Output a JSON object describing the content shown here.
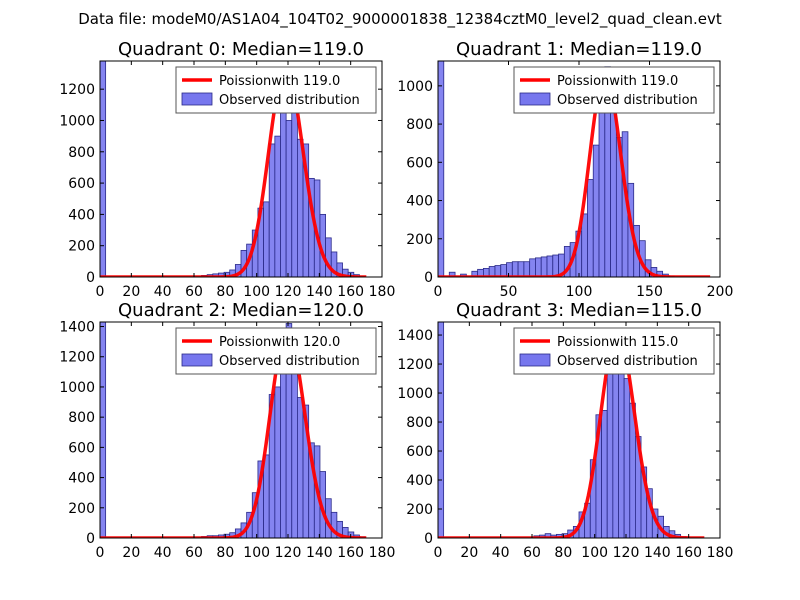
{
  "suptitle": "Data file: modeM0/AS1A04_104T02_9000001838_12384cztM0_level2_quad_clean.evt",
  "colors": {
    "poisson": "#ff0000",
    "hist_fill": "#7777ee",
    "hist_edge": "#2a2a88",
    "legend_edge": "#555555"
  },
  "chart_data": [
    {
      "type": "bar",
      "title": "Quadrant 0: Median=119.0",
      "median": 119.0,
      "xlim": [
        0,
        180
      ],
      "ylim": [
        0,
        1380
      ],
      "xticks": [
        0,
        20,
        40,
        60,
        80,
        100,
        120,
        140,
        160,
        180
      ],
      "yticks": [
        0,
        200,
        400,
        600,
        800,
        1000,
        1200
      ],
      "legend": {
        "position": "top-right",
        "entries": [
          "Poissionwith 119.0",
          "Observed distribution"
        ]
      },
      "bin_width": 3.6,
      "bins": [
        [
          0,
          1380
        ],
        [
          64.8,
          10
        ],
        [
          68.4,
          15
        ],
        [
          72.0,
          20
        ],
        [
          75.6,
          25
        ],
        [
          79.2,
          30
        ],
        [
          82.8,
          45
        ],
        [
          86.4,
          80
        ],
        [
          90.0,
          170
        ],
        [
          93.6,
          210
        ],
        [
          97.2,
          300
        ],
        [
          100.8,
          440
        ],
        [
          104.4,
          480
        ],
        [
          108.0,
          850
        ],
        [
          111.6,
          900
        ],
        [
          115.2,
          1200
        ],
        [
          118.8,
          1000
        ],
        [
          122.4,
          1320
        ],
        [
          126.0,
          880
        ],
        [
          129.6,
          850
        ],
        [
          133.2,
          630
        ],
        [
          136.8,
          620
        ],
        [
          140.4,
          400
        ],
        [
          144.0,
          250
        ],
        [
          147.6,
          160
        ],
        [
          151.2,
          90
        ],
        [
          154.8,
          50
        ],
        [
          158.4,
          30
        ],
        [
          162.0,
          15
        ],
        [
          165.6,
          5
        ]
      ],
      "poisson_mean": 119.0,
      "poisson_peak": 1330,
      "poisson_range": [
        0,
        170
      ]
    },
    {
      "type": "bar",
      "title": "Quadrant 1: Median=119.0",
      "median": 119.0,
      "xlim": [
        0,
        200
      ],
      "ylim": [
        0,
        1130
      ],
      "xticks": [
        0,
        50,
        100,
        150,
        200
      ],
      "yticks": [
        0,
        200,
        400,
        600,
        800,
        1000
      ],
      "legend": {
        "position": "top-right",
        "entries": [
          "Poissionwith 119.0",
          "Observed distribution"
        ]
      },
      "bin_width": 4.1,
      "bins": [
        [
          0,
          1130
        ],
        [
          8,
          25
        ],
        [
          16,
          15
        ],
        [
          24,
          30
        ],
        [
          28.1,
          40
        ],
        [
          32.2,
          45
        ],
        [
          36.3,
          55
        ],
        [
          40.4,
          60
        ],
        [
          44.5,
          65
        ],
        [
          48.6,
          75
        ],
        [
          52.7,
          80
        ],
        [
          56.8,
          80
        ],
        [
          60.9,
          80
        ],
        [
          65,
          95
        ],
        [
          69.1,
          100
        ],
        [
          73.2,
          105
        ],
        [
          77.3,
          110
        ],
        [
          81.4,
          115
        ],
        [
          85.5,
          120
        ],
        [
          89.6,
          160
        ],
        [
          93.7,
          180
        ],
        [
          97.8,
          240
        ],
        [
          101.9,
          330
        ],
        [
          106,
          510
        ],
        [
          110.1,
          690
        ],
        [
          114.2,
          950
        ],
        [
          118.3,
          1100
        ],
        [
          122.4,
          1000
        ],
        [
          126.5,
          730
        ],
        [
          130.6,
          760
        ],
        [
          134.7,
          490
        ],
        [
          138.8,
          270
        ],
        [
          142.9,
          190
        ],
        [
          147,
          90
        ],
        [
          151.1,
          50
        ],
        [
          155.2,
          30
        ],
        [
          159.3,
          15
        ],
        [
          163.4,
          5
        ]
      ],
      "poisson_mean": 119.0,
      "poisson_peak": 1060,
      "poisson_range": [
        0,
        193
      ]
    },
    {
      "type": "bar",
      "title": "Quadrant 2: Median=120.0",
      "median": 120.0,
      "xlim": [
        0,
        180
      ],
      "ylim": [
        0,
        1430
      ],
      "xticks": [
        0,
        20,
        40,
        60,
        80,
        100,
        120,
        140,
        160,
        180
      ],
      "yticks": [
        0,
        200,
        400,
        600,
        800,
        1000,
        1200,
        1400
      ],
      "legend": {
        "position": "top-right",
        "entries": [
          "Poissionwith 120.0",
          "Observed distribution"
        ]
      },
      "bin_width": 3.6,
      "bins": [
        [
          0,
          1430
        ],
        [
          64.8,
          10
        ],
        [
          68.4,
          15
        ],
        [
          72.0,
          15
        ],
        [
          75.6,
          20
        ],
        [
          79.2,
          25
        ],
        [
          82.8,
          35
        ],
        [
          86.4,
          60
        ],
        [
          90.0,
          100
        ],
        [
          93.6,
          170
        ],
        [
          97.2,
          300
        ],
        [
          100.8,
          510
        ],
        [
          104.4,
          550
        ],
        [
          108.0,
          950
        ],
        [
          111.6,
          1000
        ],
        [
          115.2,
          1280
        ],
        [
          118.8,
          1420
        ],
        [
          122.4,
          1230
        ],
        [
          126.0,
          930
        ],
        [
          129.6,
          880
        ],
        [
          133.2,
          630
        ],
        [
          136.8,
          610
        ],
        [
          140.4,
          440
        ],
        [
          144.0,
          260
        ],
        [
          147.6,
          170
        ],
        [
          151.2,
          110
        ],
        [
          154.8,
          70
        ],
        [
          158.4,
          40
        ],
        [
          162.0,
          20
        ],
        [
          165.6,
          8
        ]
      ],
      "poisson_mean": 120.0,
      "poisson_peak": 1370,
      "poisson_range": [
        0,
        170
      ]
    },
    {
      "type": "bar",
      "title": "Quadrant 3: Median=115.0",
      "median": 115.0,
      "xlim": [
        0,
        180
      ],
      "ylim": [
        0,
        1490
      ],
      "xticks": [
        0,
        20,
        40,
        60,
        80,
        100,
        120,
        140,
        160,
        180
      ],
      "yticks": [
        0,
        200,
        400,
        600,
        800,
        1000,
        1200,
        1400
      ],
      "legend": {
        "position": "top-right",
        "entries": [
          "Poissionwith 115.0",
          "Observed distribution"
        ]
      },
      "bin_width": 3.6,
      "bins": [
        [
          0,
          1490
        ],
        [
          61.2,
          15
        ],
        [
          64.8,
          20
        ],
        [
          68.4,
          30
        ],
        [
          72.0,
          20
        ],
        [
          75.6,
          25
        ],
        [
          79.2,
          30
        ],
        [
          82.8,
          55
        ],
        [
          86.4,
          80
        ],
        [
          90.0,
          180
        ],
        [
          93.6,
          240
        ],
        [
          97.2,
          540
        ],
        [
          100.8,
          850
        ],
        [
          104.4,
          880
        ],
        [
          108.0,
          1200
        ],
        [
          111.6,
          1380
        ],
        [
          115.2,
          1270
        ],
        [
          118.8,
          1100
        ],
        [
          122.4,
          930
        ],
        [
          126.0,
          700
        ],
        [
          129.6,
          490
        ],
        [
          133.2,
          340
        ],
        [
          136.8,
          200
        ],
        [
          140.4,
          150
        ],
        [
          144.0,
          80
        ],
        [
          147.6,
          50
        ],
        [
          151.2,
          25
        ],
        [
          154.8,
          10
        ]
      ],
      "poisson_mean": 115.0,
      "poisson_peak": 1420,
      "poisson_range": [
        0,
        170
      ]
    }
  ]
}
